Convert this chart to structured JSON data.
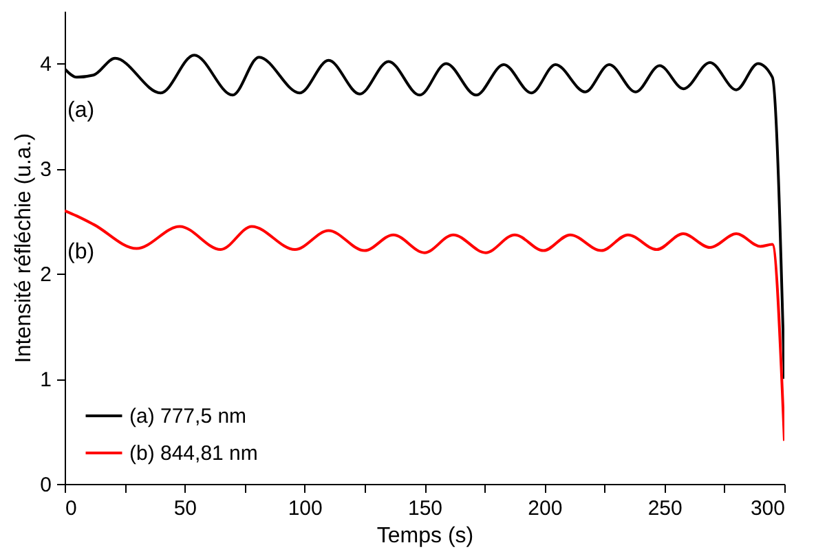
{
  "chart_data": {
    "type": "line",
    "xlabel": "Temps (s)",
    "ylabel": "Intensité réfléchie (u.a.)",
    "xlim": [
      0,
      300
    ],
    "ylim": [
      0,
      4.5
    ],
    "xticks": [
      0,
      {
        "value": 25,
        "label": null
      },
      50,
      {
        "value": 75,
        "label": null
      },
      100,
      {
        "value": 125,
        "label": null
      },
      150,
      {
        "value": 175,
        "label": null
      },
      200,
      {
        "value": 225,
        "label": null
      },
      250,
      {
        "value": 275,
        "label": null
      },
      300
    ],
    "yticks": [
      0,
      1,
      2,
      3,
      4
    ],
    "legend": "bottom left",
    "line_style": "solid",
    "marker": "none",
    "annotations": [
      "(a)",
      "(b)"
    ],
    "series": [
      {
        "name": "(a) 777,5 nm",
        "color": "#000000",
        "x": [
          0,
          5,
          12,
          21,
          40,
          54,
          70,
          81,
          98,
          110,
          123,
          135,
          148,
          159,
          171.5,
          183,
          194.6,
          204.6,
          217,
          227,
          238,
          248,
          258,
          269,
          280,
          289,
          295,
          300
        ],
        "values": [
          3.95,
          3.87,
          3.89,
          4.05,
          3.72,
          4.08,
          3.7,
          4.06,
          3.72,
          4.03,
          3.71,
          4.02,
          3.7,
          4.0,
          3.7,
          3.99,
          3.72,
          3.99,
          3.73,
          3.99,
          3.73,
          3.98,
          3.76,
          4.01,
          3.75,
          4.0,
          3.87,
          1.0
        ]
      },
      {
        "name": "(b) 844,81 nm",
        "color": "#ff0000",
        "x": [
          0,
          5,
          12,
          30,
          48,
          65,
          78,
          96,
          110,
          125,
          137,
          150,
          162,
          175.5,
          187.6,
          199.6,
          210.7,
          223.7,
          234.8,
          246.8,
          257.8,
          269,
          280,
          290,
          295,
          300
        ],
        "values": [
          2.6,
          2.55,
          2.47,
          2.24,
          2.45,
          2.23,
          2.45,
          2.23,
          2.41,
          2.22,
          2.37,
          2.2,
          2.37,
          2.2,
          2.37,
          2.22,
          2.37,
          2.22,
          2.37,
          2.23,
          2.38,
          2.25,
          2.38,
          2.26,
          2.28,
          0.41
        ]
      }
    ]
  }
}
